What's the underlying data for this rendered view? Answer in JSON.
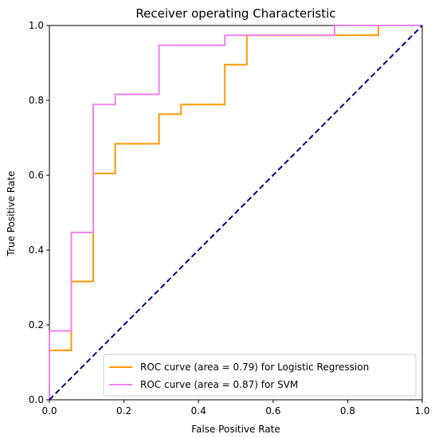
{
  "chart_data": {
    "type": "line",
    "title": "Receiver operating Characteristic",
    "xlabel": "False Positive Rate",
    "ylabel": "True Positive Rate",
    "xlim": [
      0,
      1
    ],
    "ylim": [
      0,
      1
    ],
    "xticks": [
      "0.0",
      "0.2",
      "0.4",
      "0.6",
      "0.8",
      "1.0"
    ],
    "yticks": [
      "0.0",
      "0.2",
      "0.4",
      "0.6",
      "0.8",
      "1.0"
    ],
    "grid": false,
    "legend_position": "bottom-right",
    "series": [
      {
        "name": "ROC curve (area = 0.79) for Logistic Regression",
        "color": "#ff9900",
        "x": [
          0.0,
          0.0,
          0.0588,
          0.0588,
          0.1176,
          0.1176,
          0.1765,
          0.1765,
          0.2941,
          0.2941,
          0.3529,
          0.3529,
          0.4706,
          0.4706,
          0.5294,
          0.5294,
          0.8824,
          0.8824,
          1.0
        ],
        "y": [
          0.0,
          0.132,
          0.132,
          0.316,
          0.316,
          0.605,
          0.605,
          0.684,
          0.684,
          0.763,
          0.763,
          0.789,
          0.789,
          0.895,
          0.895,
          0.974,
          0.974,
          1.0,
          1.0
        ]
      },
      {
        "name": "ROC curve (area = 0.87) for SVM",
        "color": "#ee82ee",
        "x": [
          0.0,
          0.0,
          0.0588,
          0.0588,
          0.1176,
          0.1176,
          0.1765,
          0.1765,
          0.2941,
          0.2941,
          0.4706,
          0.4706,
          0.7647,
          0.7647,
          1.0
        ],
        "y": [
          0.0,
          0.184,
          0.184,
          0.447,
          0.447,
          0.789,
          0.789,
          0.816,
          0.816,
          0.947,
          0.947,
          0.974,
          0.974,
          1.0,
          1.0
        ]
      },
      {
        "name": "",
        "color": "#000080",
        "dashed": true,
        "x": [
          0,
          1
        ],
        "y": [
          0,
          1
        ]
      }
    ]
  }
}
